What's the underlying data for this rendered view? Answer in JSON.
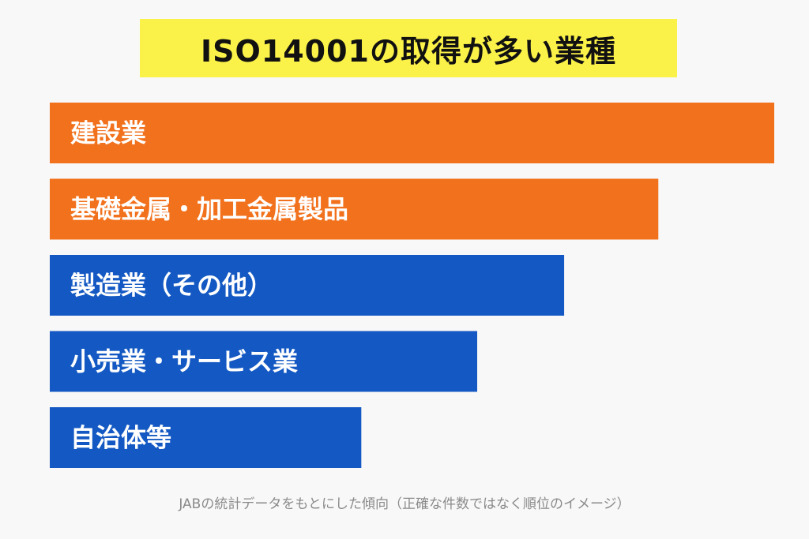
{
  "title": "ISO14001の取得が多い業種",
  "caption": "JABの統計データをもとにした傾向（正確な件数ではなく順位のイメージ）",
  "colors": {
    "title_bg": "#fbf249",
    "orange": "#f2711c",
    "blue": "#1459c3",
    "label": "#ffffff",
    "caption": "#8a8a8a"
  },
  "chart_data": {
    "type": "bar",
    "orientation": "horizontal",
    "title": "ISO14001の取得が多い業種",
    "categories": [
      "建設業",
      "基礎金属・加工金属製品",
      "製造業（その他）",
      "小売業・サービス業",
      "自治体等"
    ],
    "values": [
      100,
      84,
      71,
      59,
      43
    ],
    "bar_colors": [
      "#f2711c",
      "#f2711c",
      "#1459c3",
      "#1459c3",
      "#1459c3"
    ],
    "value_labels_shown": false,
    "xlabel": "",
    "ylabel": "",
    "xlim": [
      0,
      100
    ],
    "grid": false,
    "legend": "none"
  }
}
